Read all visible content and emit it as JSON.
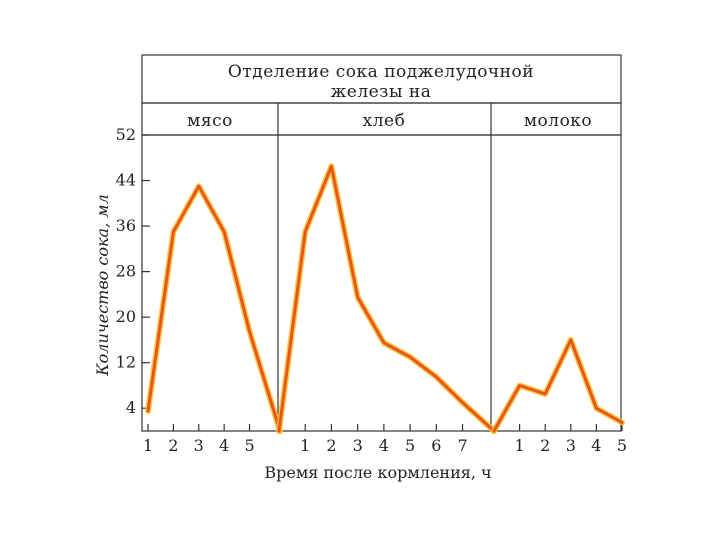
{
  "chart_data": {
    "type": "line",
    "title_lines": [
      "Отделение сока поджелудочной",
      "железы на"
    ],
    "xlabel": "Время после кормления, ч",
    "ylabel": "Количество сока, мл",
    "ylim": [
      0,
      52
    ],
    "y_ticks": [
      "4",
      "12",
      "20",
      "28",
      "36",
      "44",
      "52"
    ],
    "line_color": "#e8561c",
    "line_glow": "#f6c02a",
    "panels": [
      {
        "name": "мясо",
        "x_ticks": [
          "1",
          "2",
          "3",
          "4",
          "5"
        ],
        "xlim": [
          1,
          6.2
        ],
        "points": [
          [
            1,
            3.5
          ],
          [
            2,
            35
          ],
          [
            3,
            43
          ],
          [
            4,
            35
          ],
          [
            5,
            17.5
          ],
          [
            6.2,
            0
          ]
        ]
      },
      {
        "name": "хлеб",
        "x_ticks": [
          "1",
          "2",
          "3",
          "4",
          "5",
          "6",
          "7"
        ],
        "xlim": [
          0,
          8.2
        ],
        "points": [
          [
            0,
            0
          ],
          [
            1,
            35
          ],
          [
            2,
            46.5
          ],
          [
            3,
            23.5
          ],
          [
            4,
            15.5
          ],
          [
            5,
            13
          ],
          [
            6,
            9.5
          ],
          [
            7,
            5
          ],
          [
            8.2,
            0
          ]
        ]
      },
      {
        "name": "молоко",
        "x_ticks": [
          "1",
          "2",
          "3",
          "4",
          "5"
        ],
        "xlim": [
          0,
          5
        ],
        "points": [
          [
            0,
            0
          ],
          [
            1,
            8
          ],
          [
            2,
            6.5
          ],
          [
            3,
            16
          ],
          [
            4,
            4
          ],
          [
            5,
            1.5
          ]
        ]
      }
    ]
  }
}
